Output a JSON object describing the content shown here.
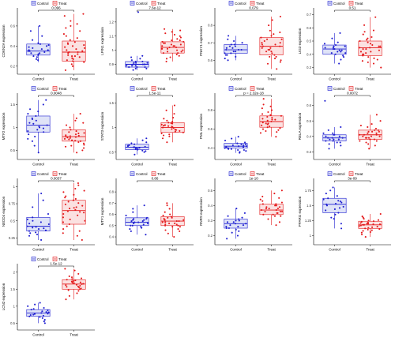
{
  "legend": {
    "control_label": "Control",
    "treat_label": "Treat"
  },
  "groups": [
    "Control",
    "Treat"
  ],
  "colors": {
    "control": "#1f1fd1",
    "treat": "#e41a1c",
    "control_fill": "#dfe3f7",
    "treat_fill": "#fbe1e1",
    "axis": "#000000"
  },
  "chart_data": [
    {
      "type": "boxplot",
      "ylabel": "CDKN2A expression",
      "p_label": "0.096",
      "yticks": [
        0.2,
        0.4,
        0.6
      ],
      "ylim": [
        0.12,
        0.78
      ],
      "control": {
        "q1": 0.31,
        "median": 0.35,
        "q3": 0.42,
        "wlo": 0.24,
        "whi": 0.6,
        "points": [
          0.31,
          0.33,
          0.35,
          0.38,
          0.29,
          0.32,
          0.36,
          0.4,
          0.42,
          0.27,
          0.3,
          0.34,
          0.37,
          0.39,
          0.43,
          0.46,
          0.5,
          0.55,
          0.6,
          0.26,
          0.33,
          0.35,
          0.36,
          0.41
        ]
      },
      "treat": {
        "q1": 0.25,
        "median": 0.34,
        "q3": 0.45,
        "wlo": 0.16,
        "whi": 0.72,
        "points": [
          0.16,
          0.2,
          0.24,
          0.26,
          0.28,
          0.3,
          0.32,
          0.34,
          0.36,
          0.38,
          0.4,
          0.42,
          0.44,
          0.46,
          0.5,
          0.55,
          0.6,
          0.65,
          0.7,
          0.72,
          0.33,
          0.35,
          0.27,
          0.31,
          0.37,
          0.22,
          0.29,
          0.48,
          0.58,
          0.43,
          0.25,
          0.39,
          0.52,
          0.3,
          0.34,
          0.62,
          0.41
        ]
      }
    },
    {
      "type": "boxplot",
      "ylabel": "LPIN1 expression",
      "p_label": "7.6e-12",
      "yticks": [
        0.9,
        1.0,
        1.1,
        1.2
      ],
      "ylim": [
        0.83,
        1.3
      ],
      "control": {
        "q1": 0.88,
        "median": 0.9,
        "q3": 0.92,
        "wlo": 0.86,
        "whi": 0.96,
        "points": [
          0.86,
          0.87,
          0.88,
          0.89,
          0.9,
          0.91,
          0.92,
          0.93,
          0.95,
          0.96,
          0.88,
          0.89,
          0.9,
          0.9,
          0.91,
          0.87,
          0.88,
          0.92,
          0.94,
          1.27,
          0.89,
          0.9,
          0.91
        ]
      },
      "treat": {
        "q1": 0.98,
        "median": 1.02,
        "q3": 1.06,
        "wlo": 0.92,
        "whi": 1.15,
        "points": [
          0.92,
          0.95,
          0.97,
          0.98,
          0.99,
          1.0,
          1.01,
          1.02,
          1.03,
          1.04,
          1.05,
          1.06,
          1.07,
          1.09,
          1.11,
          1.13,
          1.15,
          0.96,
          0.99,
          1.01,
          1.03,
          1.05,
          1.08,
          1.0,
          1.02,
          1.04,
          0.94,
          1.1,
          1.12,
          1.06,
          0.98,
          1.01,
          1.03,
          1.07,
          1.14
        ]
      }
    },
    {
      "type": "boxplot",
      "ylabel": "PNKY1 expression",
      "p_label": "0.079",
      "yticks": [
        0.6,
        0.7,
        0.8
      ],
      "ylim": [
        0.52,
        0.9
      ],
      "control": {
        "q1": 0.64,
        "median": 0.66,
        "q3": 0.69,
        "wlo": 0.6,
        "whi": 0.74,
        "points": [
          0.6,
          0.62,
          0.63,
          0.64,
          0.65,
          0.66,
          0.67,
          0.68,
          0.69,
          0.7,
          0.72,
          0.74,
          0.64,
          0.66,
          0.67,
          0.65,
          0.63,
          0.68,
          0.71,
          0.61,
          0.66,
          0.69
        ]
      },
      "treat": {
        "q1": 0.63,
        "median": 0.68,
        "q3": 0.73,
        "wlo": 0.55,
        "whi": 0.85,
        "points": [
          0.55,
          0.58,
          0.6,
          0.62,
          0.63,
          0.65,
          0.66,
          0.67,
          0.68,
          0.69,
          0.7,
          0.71,
          0.72,
          0.73,
          0.75,
          0.77,
          0.8,
          0.83,
          0.85,
          0.64,
          0.66,
          0.68,
          0.7,
          0.61,
          0.74,
          0.59,
          0.69,
          0.67,
          0.72,
          0.76,
          0.62,
          0.65
        ]
      }
    },
    {
      "type": "boxplot",
      "ylabel": "LIG3 expression",
      "p_label": "0.51",
      "yticks": [
        0.3,
        0.4,
        0.5,
        0.6,
        0.7
      ],
      "ylim": [
        0.25,
        0.75
      ],
      "control": {
        "q1": 0.4,
        "median": 0.44,
        "q3": 0.47,
        "wlo": 0.33,
        "whi": 0.56,
        "points": [
          0.33,
          0.36,
          0.38,
          0.4,
          0.41,
          0.42,
          0.43,
          0.44,
          0.45,
          0.46,
          0.47,
          0.49,
          0.52,
          0.56,
          0.42,
          0.44,
          0.45,
          0.39,
          0.43,
          0.48,
          0.41,
          0.46
        ]
      },
      "treat": {
        "q1": 0.39,
        "median": 0.45,
        "q3": 0.5,
        "wlo": 0.3,
        "whi": 0.68,
        "points": [
          0.3,
          0.33,
          0.35,
          0.37,
          0.39,
          0.4,
          0.42,
          0.44,
          0.45,
          0.46,
          0.48,
          0.5,
          0.52,
          0.55,
          0.58,
          0.62,
          0.68,
          0.41,
          0.43,
          0.47,
          0.49,
          0.36,
          0.44,
          0.51,
          0.38,
          0.46,
          0.53,
          0.42,
          0.4,
          0.45,
          0.57,
          0.34
        ]
      }
    },
    {
      "type": "boxplot",
      "ylabel": "MTF2 expression",
      "p_label": "0.0048",
      "yticks": [
        0.5,
        1,
        1.5
      ],
      "ylim": [
        0.3,
        1.75
      ],
      "control": {
        "q1": 0.9,
        "median": 1.05,
        "q3": 1.25,
        "wlo": 0.45,
        "whi": 1.6,
        "points": [
          0.45,
          0.6,
          0.75,
          0.85,
          0.9,
          0.95,
          1.0,
          1.05,
          1.1,
          1.15,
          1.2,
          1.25,
          1.3,
          1.4,
          1.5,
          1.6,
          0.92,
          1.02,
          1.08,
          0.8,
          1.18,
          0.98,
          1.35,
          0.7
        ]
      },
      "treat": {
        "q1": 0.7,
        "median": 0.8,
        "q3": 0.95,
        "wlo": 0.45,
        "whi": 1.3,
        "points": [
          0.45,
          0.5,
          0.55,
          0.6,
          0.65,
          0.7,
          0.72,
          0.75,
          0.78,
          0.8,
          0.82,
          0.85,
          0.88,
          0.9,
          0.95,
          1.0,
          1.05,
          1.1,
          1.2,
          1.3,
          0.68,
          0.74,
          0.79,
          0.83,
          0.87,
          0.62,
          0.92,
          0.77,
          0.81,
          0.71,
          1.15,
          0.58
        ]
      }
    },
    {
      "type": "boxplot",
      "ylabel": "STAT3 expression",
      "p_label": "1.5e-11",
      "yticks": [
        0.5,
        1.0,
        1.5
      ],
      "ylim": [
        0.35,
        1.7
      ],
      "control": {
        "q1": 0.55,
        "median": 0.6,
        "q3": 0.66,
        "wlo": 0.45,
        "whi": 0.78,
        "points": [
          0.45,
          0.5,
          0.53,
          0.55,
          0.57,
          0.59,
          0.6,
          0.62,
          0.64,
          0.66,
          0.7,
          0.74,
          0.78,
          0.58,
          0.61,
          0.56,
          0.63,
          0.52,
          0.6,
          0.68
        ]
      },
      "treat": {
        "q1": 0.9,
        "median": 1.0,
        "q3": 1.1,
        "wlo": 0.7,
        "whi": 1.45,
        "points": [
          0.7,
          0.78,
          0.82,
          0.86,
          0.9,
          0.93,
          0.96,
          0.99,
          1.0,
          1.02,
          1.05,
          1.08,
          1.1,
          1.14,
          1.2,
          1.28,
          1.35,
          1.45,
          0.95,
          1.01,
          1.04,
          0.88,
          1.12,
          0.97,
          1.06,
          0.92,
          1.18,
          0.84,
          1.03,
          1.09
        ]
      }
    },
    {
      "type": "boxplot",
      "ylabel": "PML expression",
      "p_label": "p = 2.32e-18",
      "yticks": [
        0.4,
        0.6,
        0.8
      ],
      "ylim": [
        0.28,
        0.98
      ],
      "control": {
        "q1": 0.4,
        "median": 0.42,
        "q3": 0.45,
        "wlo": 0.35,
        "whi": 0.52,
        "points": [
          0.35,
          0.37,
          0.38,
          0.39,
          0.4,
          0.41,
          0.42,
          0.43,
          0.44,
          0.45,
          0.46,
          0.48,
          0.5,
          0.52,
          0.41,
          0.42,
          0.43,
          0.39,
          0.44,
          0.38,
          0.4,
          0.36
        ]
      },
      "treat": {
        "q1": 0.62,
        "median": 0.68,
        "q3": 0.74,
        "wlo": 0.52,
        "whi": 0.92,
        "points": [
          0.52,
          0.56,
          0.58,
          0.6,
          0.62,
          0.64,
          0.66,
          0.68,
          0.7,
          0.72,
          0.74,
          0.76,
          0.78,
          0.82,
          0.86,
          0.92,
          0.65,
          0.67,
          0.69,
          0.71,
          0.63,
          0.73,
          0.59,
          0.75,
          0.8,
          0.61,
          0.7,
          0.66,
          0.57,
          0.84
        ]
      }
    },
    {
      "type": "boxplot",
      "ylabel": "RELA expression",
      "p_label": "0.0072",
      "yticks": [
        0.3,
        0.4,
        0.5,
        0.6
      ],
      "ylim": [
        0.25,
        0.68
      ],
      "control": {
        "q1": 0.37,
        "median": 0.39,
        "q3": 0.41,
        "wlo": 0.32,
        "whi": 0.46,
        "points": [
          0.32,
          0.34,
          0.35,
          0.36,
          0.37,
          0.38,
          0.39,
          0.4,
          0.41,
          0.42,
          0.44,
          0.46,
          0.38,
          0.39,
          0.4,
          0.37,
          0.41,
          0.36,
          0.63,
          0.39,
          0.38,
          0.42
        ]
      },
      "treat": {
        "q1": 0.38,
        "median": 0.41,
        "q3": 0.44,
        "wlo": 0.32,
        "whi": 0.54,
        "points": [
          0.32,
          0.34,
          0.36,
          0.37,
          0.38,
          0.39,
          0.4,
          0.41,
          0.42,
          0.43,
          0.44,
          0.45,
          0.47,
          0.5,
          0.54,
          0.4,
          0.41,
          0.39,
          0.42,
          0.43,
          0.38,
          0.44,
          0.35,
          0.46,
          0.41,
          0.4,
          0.37,
          0.48,
          0.43,
          0.39
        ]
      }
    },
    {
      "type": "boxplot",
      "ylabel": "NEDD4 expression",
      "p_label": "0.0037",
      "yticks": [
        0.25,
        0.5,
        0.75,
        1.0
      ],
      "ylim": [
        0.15,
        1.12
      ],
      "control": {
        "q1": 0.35,
        "median": 0.42,
        "q3": 0.55,
        "wlo": 0.22,
        "whi": 0.9,
        "points": [
          0.22,
          0.28,
          0.3,
          0.33,
          0.35,
          0.38,
          0.4,
          0.42,
          0.45,
          0.48,
          0.5,
          0.55,
          0.6,
          0.7,
          0.8,
          0.9,
          0.41,
          0.36,
          0.46,
          0.32,
          0.52,
          0.39
        ]
      },
      "treat": {
        "q1": 0.45,
        "median": 0.65,
        "q3": 0.8,
        "wlo": 0.22,
        "whi": 1.05,
        "points": [
          0.22,
          0.28,
          0.32,
          0.38,
          0.42,
          0.45,
          0.5,
          0.55,
          0.6,
          0.64,
          0.66,
          0.7,
          0.74,
          0.78,
          0.8,
          0.84,
          0.88,
          0.92,
          0.97,
          1.02,
          1.05,
          0.62,
          0.68,
          0.72,
          0.58,
          0.76,
          0.48,
          0.86,
          0.52,
          0.69,
          0.35,
          0.82,
          0.63,
          0.94
        ]
      }
    },
    {
      "type": "boxplot",
      "ylabel": "MTF1 expression",
      "p_label": "0.86",
      "yticks": [
        0.4,
        0.5,
        0.6,
        0.7,
        0.8
      ],
      "ylim": [
        0.33,
        0.92
      ],
      "control": {
        "q1": 0.5,
        "median": 0.53,
        "q3": 0.57,
        "wlo": 0.42,
        "whi": 0.68,
        "points": [
          0.42,
          0.45,
          0.47,
          0.49,
          0.5,
          0.51,
          0.52,
          0.53,
          0.54,
          0.55,
          0.56,
          0.57,
          0.59,
          0.62,
          0.65,
          0.68,
          0.52,
          0.54,
          0.5,
          0.56,
          0.48,
          0.53,
          0.55
        ]
      },
      "treat": {
        "q1": 0.5,
        "median": 0.54,
        "q3": 0.58,
        "wlo": 0.4,
        "whi": 0.7,
        "points": [
          0.4,
          0.43,
          0.45,
          0.47,
          0.49,
          0.5,
          0.51,
          0.52,
          0.53,
          0.54,
          0.55,
          0.56,
          0.57,
          0.58,
          0.6,
          0.62,
          0.65,
          0.68,
          0.7,
          0.53,
          0.55,
          0.51,
          0.57,
          0.49,
          0.52,
          0.56,
          0.54,
          0.46,
          0.59,
          0.5
        ]
      }
    },
    {
      "type": "boxplot",
      "ylabel": "RNRS expression",
      "p_label": "1e-10",
      "yticks": [
        0.2,
        0.3,
        0.4,
        0.5
      ],
      "ylim": [
        0.14,
        0.58
      ],
      "control": {
        "q1": 0.25,
        "median": 0.28,
        "q3": 0.31,
        "wlo": 0.18,
        "whi": 0.38,
        "points": [
          0.18,
          0.2,
          0.22,
          0.24,
          0.25,
          0.26,
          0.27,
          0.28,
          0.29,
          0.3,
          0.31,
          0.33,
          0.35,
          0.38,
          0.27,
          0.28,
          0.26,
          0.29,
          0.23,
          0.3,
          0.25,
          0.32
        ]
      },
      "treat": {
        "q1": 0.34,
        "median": 0.37,
        "q3": 0.41,
        "wlo": 0.27,
        "whi": 0.5,
        "points": [
          0.27,
          0.29,
          0.31,
          0.33,
          0.34,
          0.35,
          0.36,
          0.37,
          0.38,
          0.39,
          0.4,
          0.41,
          0.42,
          0.44,
          0.46,
          0.48,
          0.5,
          0.36,
          0.38,
          0.37,
          0.35,
          0.39,
          0.4,
          0.33,
          0.43,
          0.36,
          0.38,
          0.34,
          0.41,
          0.45
        ]
      }
    },
    {
      "type": "boxplot",
      "ylabel": "PPARG expression",
      "p_label": "3e-09",
      "yticks": [
        1.0,
        1.25,
        1.5,
        1.75
      ],
      "ylim": [
        0.85,
        1.95
      ],
      "control": {
        "q1": 1.38,
        "median": 1.52,
        "q3": 1.62,
        "wlo": 1.12,
        "whi": 1.8,
        "points": [
          1.12,
          1.2,
          1.28,
          1.35,
          1.38,
          1.42,
          1.46,
          1.5,
          1.52,
          1.55,
          1.58,
          1.6,
          1.62,
          1.66,
          1.7,
          1.75,
          1.8,
          1.48,
          1.53,
          1.44,
          1.57,
          1.3
        ]
      },
      "treat": {
        "q1": 1.12,
        "median": 1.18,
        "q3": 1.24,
        "wlo": 0.98,
        "whi": 1.36,
        "points": [
          0.98,
          1.02,
          1.05,
          1.08,
          1.1,
          1.12,
          1.14,
          1.16,
          1.18,
          1.19,
          1.2,
          1.22,
          1.24,
          1.26,
          1.28,
          1.32,
          1.36,
          1.17,
          1.15,
          1.21,
          1.13,
          1.23,
          1.09,
          1.19,
          1.25,
          1.11,
          1.18,
          1.3,
          1.06,
          1.2
        ]
      }
    },
    {
      "type": "boxplot",
      "ylabel": "LCN2 expression",
      "p_label": "1.5e-12",
      "yticks": [
        0.5,
        1.0,
        1.5,
        2.0
      ],
      "ylim": [
        0.3,
        2.25
      ],
      "control": {
        "q1": 0.7,
        "median": 0.8,
        "q3": 0.9,
        "wlo": 0.5,
        "whi": 1.1,
        "points": [
          0.5,
          0.55,
          0.6,
          0.65,
          0.7,
          0.72,
          0.75,
          0.78,
          0.8,
          0.82,
          0.85,
          0.88,
          0.9,
          0.95,
          1.0,
          1.05,
          1.1,
          0.77,
          0.83,
          0.68,
          0.92,
          0.74
        ]
      },
      "treat": {
        "q1": 1.5,
        "median": 1.65,
        "q3": 1.78,
        "wlo": 1.2,
        "whi": 2.1,
        "points": [
          1.2,
          1.3,
          1.38,
          1.45,
          1.5,
          1.55,
          1.58,
          1.62,
          1.65,
          1.68,
          1.7,
          1.73,
          1.76,
          1.78,
          1.82,
          1.88,
          1.95,
          2.05,
          2.1,
          1.6,
          1.66,
          1.72,
          1.52,
          1.8,
          1.63,
          1.47,
          1.69,
          1.57,
          1.74,
          1.85
        ]
      }
    }
  ]
}
